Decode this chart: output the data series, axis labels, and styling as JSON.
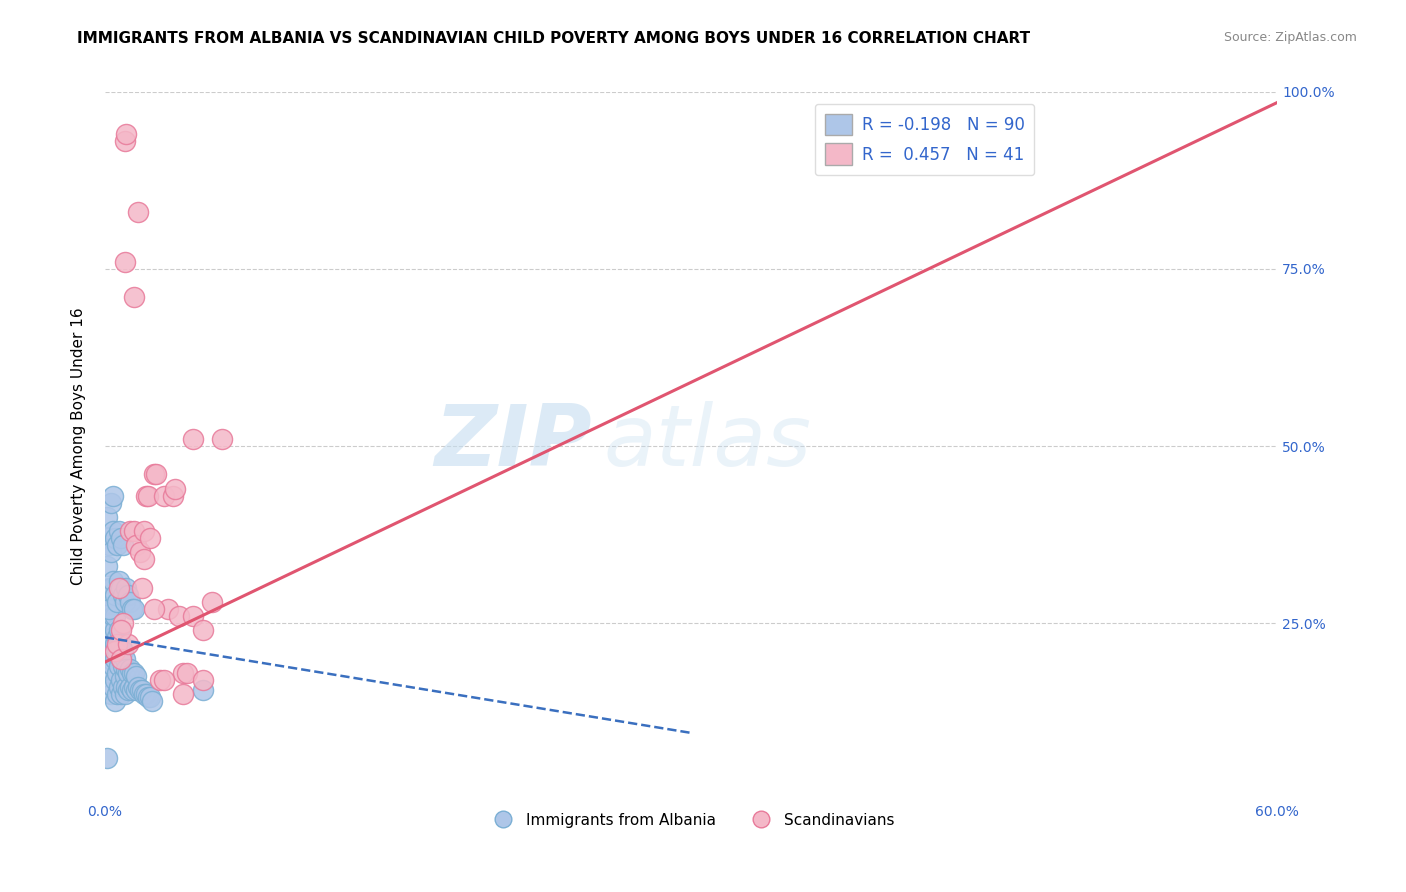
{
  "title": "IMMIGRANTS FROM ALBANIA VS SCANDINAVIAN CHILD POVERTY AMONG BOYS UNDER 16 CORRELATION CHART",
  "source": "Source: ZipAtlas.com",
  "ylabel": "Child Poverty Among Boys Under 16",
  "xlim": [
    0,
    0.6
  ],
  "ylim": [
    0,
    1.0
  ],
  "blue_color": "#aec6e8",
  "blue_edge": "#7bafd4",
  "pink_color": "#f4b8c8",
  "pink_edge": "#e87a9a",
  "blue_line_color": "#3a6fbf",
  "pink_line_color": "#e05570",
  "R1": -0.198,
  "N1": 90,
  "R2": 0.457,
  "N2": 41,
  "watermark_zip": "ZIP",
  "watermark_atlas": "atlas",
  "blue_x": [
    0.001,
    0.001,
    0.001,
    0.002,
    0.002,
    0.002,
    0.002,
    0.002,
    0.003,
    0.003,
    0.003,
    0.003,
    0.003,
    0.003,
    0.004,
    0.004,
    0.004,
    0.004,
    0.004,
    0.005,
    0.005,
    0.005,
    0.005,
    0.005,
    0.005,
    0.006,
    0.006,
    0.006,
    0.006,
    0.007,
    0.007,
    0.007,
    0.007,
    0.008,
    0.008,
    0.008,
    0.008,
    0.009,
    0.009,
    0.009,
    0.01,
    0.01,
    0.01,
    0.011,
    0.011,
    0.012,
    0.012,
    0.013,
    0.013,
    0.014,
    0.014,
    0.015,
    0.015,
    0.016,
    0.016,
    0.017,
    0.018,
    0.019,
    0.02,
    0.021,
    0.022,
    0.023,
    0.024,
    0.001,
    0.002,
    0.003,
    0.004,
    0.005,
    0.006,
    0.007,
    0.008,
    0.009,
    0.01,
    0.011,
    0.012,
    0.013,
    0.014,
    0.015,
    0.002,
    0.003,
    0.004,
    0.005,
    0.006,
    0.007,
    0.008,
    0.009,
    0.003,
    0.004,
    0.001,
    0.05
  ],
  "blue_y": [
    0.33,
    0.37,
    0.4,
    0.2,
    0.22,
    0.25,
    0.28,
    0.3,
    0.15,
    0.18,
    0.2,
    0.22,
    0.25,
    0.27,
    0.16,
    0.19,
    0.21,
    0.23,
    0.26,
    0.14,
    0.17,
    0.2,
    0.22,
    0.24,
    0.26,
    0.15,
    0.18,
    0.21,
    0.23,
    0.16,
    0.19,
    0.22,
    0.24,
    0.15,
    0.17,
    0.2,
    0.22,
    0.16,
    0.19,
    0.21,
    0.15,
    0.175,
    0.2,
    0.16,
    0.185,
    0.155,
    0.18,
    0.16,
    0.185,
    0.155,
    0.18,
    0.16,
    0.18,
    0.155,
    0.175,
    0.16,
    0.155,
    0.155,
    0.15,
    0.15,
    0.145,
    0.145,
    0.14,
    0.29,
    0.27,
    0.3,
    0.31,
    0.29,
    0.28,
    0.31,
    0.3,
    0.29,
    0.28,
    0.3,
    0.29,
    0.28,
    0.27,
    0.27,
    0.36,
    0.35,
    0.38,
    0.37,
    0.36,
    0.38,
    0.37,
    0.36,
    0.42,
    0.43,
    0.06,
    0.155
  ],
  "pink_x": [
    0.005,
    0.006,
    0.007,
    0.008,
    0.009,
    0.01,
    0.011,
    0.012,
    0.013,
    0.015,
    0.016,
    0.017,
    0.018,
    0.019,
    0.02,
    0.021,
    0.022,
    0.023,
    0.025,
    0.026,
    0.028,
    0.03,
    0.032,
    0.035,
    0.036,
    0.038,
    0.04,
    0.042,
    0.045,
    0.05,
    0.055,
    0.06,
    0.008,
    0.01,
    0.015,
    0.02,
    0.025,
    0.03,
    0.04,
    0.05,
    0.045
  ],
  "pink_y": [
    0.21,
    0.22,
    0.3,
    0.2,
    0.25,
    0.93,
    0.94,
    0.22,
    0.38,
    0.38,
    0.36,
    0.83,
    0.35,
    0.3,
    0.38,
    0.43,
    0.43,
    0.37,
    0.46,
    0.46,
    0.17,
    0.43,
    0.27,
    0.43,
    0.44,
    0.26,
    0.18,
    0.18,
    0.26,
    0.17,
    0.28,
    0.51,
    0.24,
    0.76,
    0.71,
    0.34,
    0.27,
    0.17,
    0.15,
    0.24,
    0.51
  ],
  "pink_line_x0": 0.0,
  "pink_line_y0": 0.195,
  "pink_line_x1": 0.6,
  "pink_line_y1": 0.985,
  "blue_line_x0": 0.0,
  "blue_line_y0": 0.23,
  "blue_line_x1": 0.3,
  "blue_line_y1": 0.095
}
